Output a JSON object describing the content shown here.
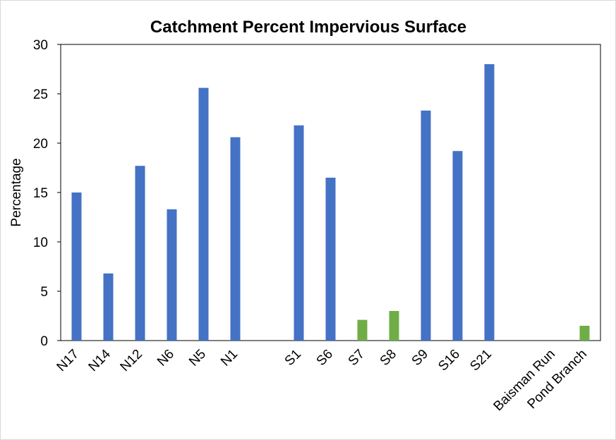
{
  "chart_data": {
    "type": "bar",
    "title": "Catchment Percent Impervious Surface",
    "xlabel": "",
    "ylabel": "Percentage",
    "ylim": [
      0,
      30
    ],
    "yticks": [
      0,
      5,
      10,
      15,
      20,
      25,
      30
    ],
    "grid": false,
    "legend": "none",
    "categories": [
      "N17",
      "N14",
      "N12",
      "N6",
      "N5",
      "N1",
      "",
      "S1",
      "S6",
      "S7",
      "S8",
      "S9",
      "S16",
      "S21",
      "",
      "Baisman Run",
      "Pond Branch"
    ],
    "values": [
      15.0,
      6.8,
      17.7,
      13.3,
      25.6,
      20.6,
      null,
      21.8,
      16.5,
      2.1,
      3.0,
      23.3,
      19.2,
      28.0,
      null,
      null,
      1.5
    ],
    "bar_colors": [
      "#4472c4",
      "#4472c4",
      "#4472c4",
      "#4472c4",
      "#4472c4",
      "#4472c4",
      null,
      "#4472c4",
      "#4472c4",
      "#70ad47",
      "#70ad47",
      "#4472c4",
      "#4472c4",
      "#4472c4",
      null,
      null,
      "#70ad47"
    ]
  }
}
